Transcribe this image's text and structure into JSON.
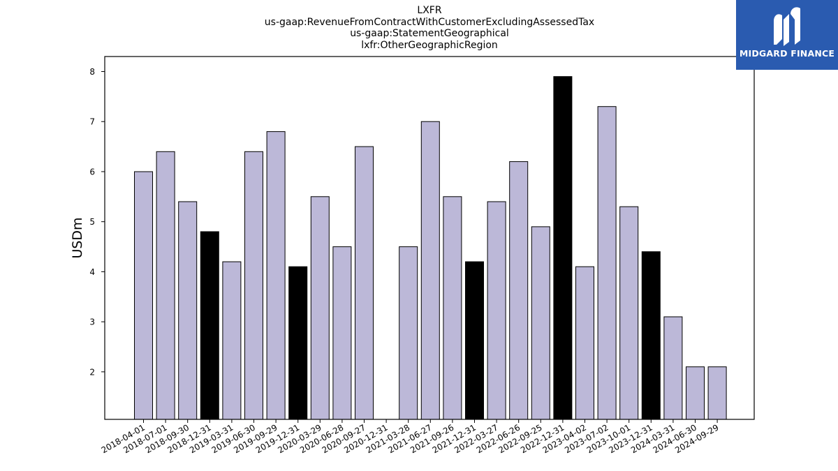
{
  "header": {
    "ticker": "LXFR",
    "concept": "us-gaap:RevenueFromContractWithCustomerExcludingAssessedTax",
    "axis": "us-gaap:StatementGeographical",
    "member": "lxfr:OtherGeographicRegion"
  },
  "brand": {
    "name": "MIDGARD FINANCE",
    "color": "#2a5bb0",
    "icon": "midgard-logo-icon"
  },
  "colors": {
    "bar_default": "#bcb8d8",
    "bar_highlight": "#000000"
  },
  "chart_data": {
    "type": "bar",
    "title": "LXFR us-gaap:RevenueFromContractWithCustomerExcludingAssessedTax us-gaap:StatementGeographical lxfr:OtherGeographicRegion",
    "xlabel": "",
    "ylabel": "USDm",
    "ylim": [
      1.05,
      8.3
    ],
    "yticks": [
      2,
      3,
      4,
      5,
      6,
      7,
      8
    ],
    "grid": false,
    "categories": [
      "2018-04-01",
      "2018-07-01",
      "2018-09-30",
      "2018-12-31",
      "2019-03-31",
      "2019-06-30",
      "2019-09-29",
      "2019-12-31",
      "2020-03-29",
      "2020-06-28",
      "2020-09-27",
      "2020-12-31",
      "2021-03-28",
      "2021-06-27",
      "2021-09-26",
      "2021-12-31",
      "2022-03-27",
      "2022-06-26",
      "2022-09-25",
      "2022-12-31",
      "2023-04-02",
      "2023-07-02",
      "2023-10-01",
      "2023-12-31",
      "2024-03-31",
      "2024-06-30",
      "2024-09-29"
    ],
    "values": [
      6.0,
      6.4,
      5.4,
      4.8,
      4.2,
      6.4,
      6.8,
      4.1,
      5.5,
      4.5,
      6.5,
      null,
      4.5,
      7.0,
      5.5,
      4.2,
      5.4,
      6.2,
      4.9,
      7.9,
      4.1,
      7.3,
      5.3,
      4.4,
      3.1,
      2.1,
      2.1
    ],
    "highlight": [
      false,
      false,
      false,
      true,
      false,
      false,
      false,
      true,
      false,
      false,
      false,
      false,
      false,
      false,
      false,
      true,
      false,
      false,
      false,
      true,
      false,
      false,
      false,
      true,
      false,
      false,
      false
    ]
  }
}
